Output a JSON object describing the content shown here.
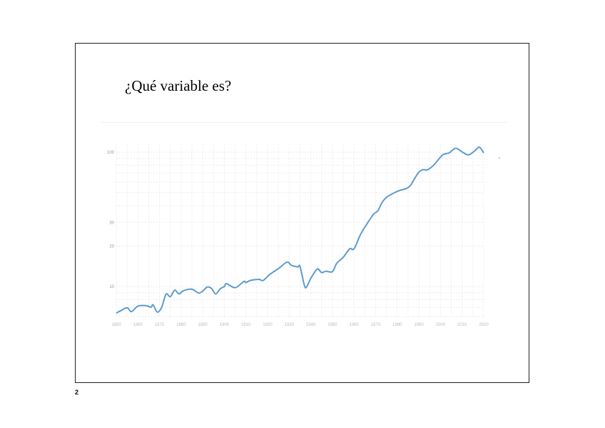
{
  "slide": {
    "title": "¿Qué variable es?",
    "page_number": "2"
  },
  "chart_data": {
    "type": "line",
    "title": "",
    "xlabel": "",
    "ylabel": "",
    "y_scale": "log",
    "ylim": [
      5.9,
      115
    ],
    "xlim": [
      1850,
      2020
    ],
    "grid": true,
    "line_color": "#5b9bd0",
    "x_ticks": [
      1850,
      1860,
      1870,
      1880,
      1890,
      1900,
      1910,
      1920,
      1930,
      1940,
      1950,
      1960,
      1970,
      1980,
      1990,
      2000,
      2010,
      2020
    ],
    "y_ticks": [
      10,
      20,
      30,
      100
    ],
    "points": [
      [
        1850,
        6.35
      ],
      [
        1852,
        6.6
      ],
      [
        1855,
        6.95
      ],
      [
        1857,
        6.5
      ],
      [
        1860,
        7.15
      ],
      [
        1864,
        7.2
      ],
      [
        1866,
        7.0
      ],
      [
        1867,
        7.3
      ],
      [
        1869,
        6.45
      ],
      [
        1871,
        7.0
      ],
      [
        1873,
        8.77
      ],
      [
        1875,
        8.4
      ],
      [
        1877,
        9.4
      ],
      [
        1879,
        8.8
      ],
      [
        1881,
        9.3
      ],
      [
        1885,
        9.55
      ],
      [
        1888,
        8.95
      ],
      [
        1890,
        9.25
      ],
      [
        1892,
        9.9
      ],
      [
        1894,
        9.7
      ],
      [
        1896,
        8.8
      ],
      [
        1898,
        9.6
      ],
      [
        1900,
        10.0
      ],
      [
        1901,
        10.5
      ],
      [
        1905,
        9.8
      ],
      [
        1909,
        10.9
      ],
      [
        1910,
        10.7
      ],
      [
        1912,
        11.1
      ],
      [
        1916,
        11.3
      ],
      [
        1918,
        11.1
      ],
      [
        1921,
        12.3
      ],
      [
        1925,
        13.6
      ],
      [
        1929,
        15.2
      ],
      [
        1931,
        14.4
      ],
      [
        1934,
        14.0
      ],
      [
        1935,
        14.1
      ],
      [
        1937,
        10.25
      ],
      [
        1938,
        9.9
      ],
      [
        1940,
        11.5
      ],
      [
        1943,
        13.5
      ],
      [
        1945,
        12.7
      ],
      [
        1947,
        13.0
      ],
      [
        1950,
        12.9
      ],
      [
        1952,
        14.9
      ],
      [
        1955,
        16.5
      ],
      [
        1958,
        19.1
      ],
      [
        1960,
        19.1
      ],
      [
        1963,
        24.4
      ],
      [
        1966,
        29.3
      ],
      [
        1969,
        34.5
      ],
      [
        1971,
        36.6
      ],
      [
        1973,
        42.3
      ],
      [
        1975,
        46.1
      ],
      [
        1978,
        49.3
      ],
      [
        1981,
        51.8
      ],
      [
        1984,
        53.5
      ],
      [
        1986,
        56.3
      ],
      [
        1988,
        63.5
      ],
      [
        1990,
        71
      ],
      [
        1992,
        74.1
      ],
      [
        1994,
        74
      ],
      [
        1997,
        80.5
      ],
      [
        2001,
        95.5
      ],
      [
        2004,
        98.8
      ],
      [
        2007,
        107
      ],
      [
        2010,
        100.5
      ],
      [
        2013,
        95.5
      ],
      [
        2016,
        102.7
      ],
      [
        2018,
        109
      ],
      [
        2020,
        98.8
      ]
    ]
  }
}
